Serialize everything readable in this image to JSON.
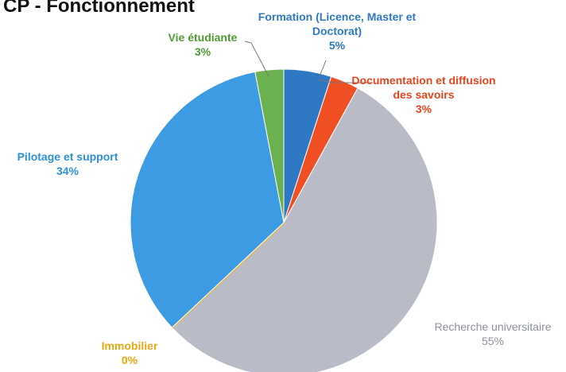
{
  "chart_data": {
    "type": "pie",
    "title": "CP - Fonctionnement",
    "categories": [
      "Formation (Licence, Master et Doctorat)",
      "Documentation et diffusion des savoirs",
      "Recherche universitaire",
      "Immobilier",
      "Pilotage et support",
      "Vie étudiante"
    ],
    "values": [
      5,
      3,
      55,
      0,
      34,
      3
    ],
    "value_labels": [
      "5%",
      "3%",
      "55%",
      "0%",
      "34%",
      "3%"
    ],
    "colors": [
      "#2f78c4",
      "#f04e23",
      "#b9bcc6",
      "#f3b51b",
      "#3d9be3",
      "#6bb14f"
    ]
  }
}
